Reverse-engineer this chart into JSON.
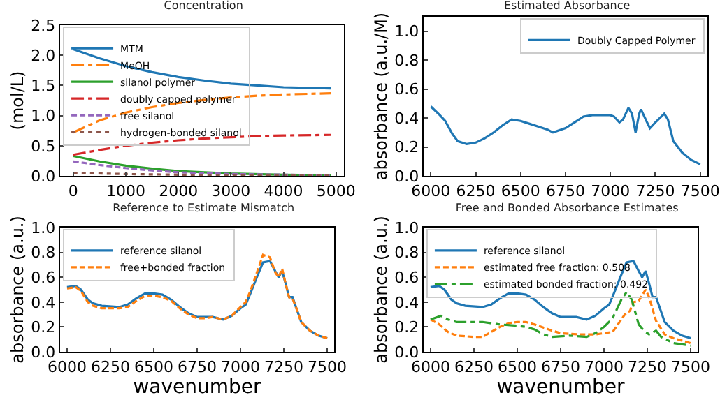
{
  "chart_data": [
    {
      "type": "line",
      "title": "Concentration",
      "ylabel": "(mol/L)",
      "xlim": [
        -250,
        5150
      ],
      "xticks": [
        0,
        1000,
        2000,
        3000,
        4000,
        5000
      ],
      "ylim": [
        0,
        2.5
      ],
      "yticks": [
        {
          "value": 0,
          "label": "0.0"
        },
        {
          "value": 0.5,
          "label": "0.5"
        },
        {
          "value": 1,
          "label": "1.0"
        },
        {
          "value": 1.5,
          "label": "1.5"
        },
        {
          "value": 2,
          "label": "2.0"
        },
        {
          "value": 2.5,
          "label": "2.5"
        }
      ],
      "grid": false,
      "legend": "top left",
      "series": [
        {
          "name": "MTM",
          "color": "#1f77b4",
          "line_style": "solid",
          "x": [
            0,
            500,
            1000,
            1500,
            2000,
            2500,
            3000,
            3500,
            4000,
            4900
          ],
          "values": [
            2.1,
            1.95,
            1.82,
            1.72,
            1.64,
            1.58,
            1.53,
            1.5,
            1.47,
            1.45
          ]
        },
        {
          "name": "MeOH",
          "color": "#ff7f0e",
          "line_style": "dashdot",
          "x": [
            0,
            500,
            1000,
            1500,
            2000,
            2500,
            3000,
            3500,
            4000,
            4900
          ],
          "values": [
            0.72,
            0.92,
            1.05,
            1.14,
            1.21,
            1.26,
            1.3,
            1.33,
            1.35,
            1.37
          ]
        },
        {
          "name": "silanol polymer",
          "color": "#2ca02c",
          "line_style": "solid",
          "x": [
            0,
            500,
            1000,
            1500,
            2000,
            3000,
            4000,
            4900
          ],
          "values": [
            0.33,
            0.24,
            0.17,
            0.12,
            0.08,
            0.04,
            0.02,
            0.01
          ]
        },
        {
          "name": "doubly capped polymer",
          "color": "#d62728",
          "line_style": "dashdot",
          "x": [
            0,
            500,
            1000,
            1500,
            2000,
            2500,
            3000,
            3500,
            4000,
            4900
          ],
          "values": [
            0.35,
            0.43,
            0.5,
            0.55,
            0.59,
            0.62,
            0.64,
            0.66,
            0.67,
            0.68
          ]
        },
        {
          "name": "free silanol",
          "color": "#9467bd",
          "line_style": "dashed",
          "x": [
            0,
            500,
            1000,
            1500,
            2000,
            3000,
            4000,
            4900
          ],
          "values": [
            0.24,
            0.18,
            0.13,
            0.09,
            0.06,
            0.03,
            0.02,
            0.01
          ]
        },
        {
          "name": "hydrogen-bonded silanol",
          "color": "#8c564b",
          "line_style": "dotted",
          "x": [
            0,
            1000,
            2000,
            3000,
            4900
          ],
          "values": [
            0.05,
            0.03,
            0.02,
            0.01,
            0.01
          ]
        }
      ]
    },
    {
      "type": "line",
      "title": "Estimated Absorbance",
      "ylabel": "absorbance (a.u./M)",
      "xlim": [
        5960,
        7540
      ],
      "xticks": [
        6000,
        6250,
        6500,
        6750,
        7000,
        7250,
        7500
      ],
      "ylim": [
        0,
        1.1
      ],
      "yticks": [
        {
          "value": 0,
          "label": "0.0"
        },
        0.2,
        0.4,
        0.6,
        0.8,
        {
          "value": 1,
          "label": "1.0"
        }
      ],
      "grid": false,
      "legend": "top right",
      "series": [
        {
          "name": "Doubly Capped Polymer",
          "color": "#1f77b4",
          "line_style": "solid",
          "x": [
            6000,
            6050,
            6080,
            6120,
            6150,
            6200,
            6250,
            6300,
            6350,
            6400,
            6450,
            6500,
            6550,
            6600,
            6650,
            6680,
            6750,
            6800,
            6850,
            6900,
            6950,
            7000,
            7020,
            7050,
            7070,
            7100,
            7120,
            7140,
            7160,
            7170,
            7200,
            7220,
            7250,
            7300,
            7320,
            7350,
            7400,
            7450,
            7500
          ],
          "values": [
            0.48,
            0.42,
            0.38,
            0.29,
            0.24,
            0.22,
            0.23,
            0.26,
            0.3,
            0.35,
            0.39,
            0.38,
            0.36,
            0.34,
            0.32,
            0.3,
            0.33,
            0.37,
            0.41,
            0.42,
            0.42,
            0.42,
            0.41,
            0.37,
            0.39,
            0.47,
            0.43,
            0.3,
            0.43,
            0.46,
            0.38,
            0.33,
            0.37,
            0.43,
            0.39,
            0.24,
            0.16,
            0.11,
            0.08
          ]
        }
      ]
    },
    {
      "type": "line",
      "title": "Reference to Estimate Mismatch",
      "xlabel": "wavenumber",
      "ylabel": "absorbance (a.u.)",
      "xlim": [
        5960,
        7540
      ],
      "xticks": [
        6000,
        6250,
        6500,
        6750,
        7000,
        7250,
        7500
      ],
      "ylim": [
        0,
        1.0
      ],
      "yticks": [
        {
          "value": 0,
          "label": "0.0"
        },
        0.2,
        0.4,
        0.6,
        0.8,
        {
          "value": 1,
          "label": "1.0"
        }
      ],
      "grid": false,
      "legend": "top left",
      "series": [
        {
          "name": "reference silanol",
          "color": "#1f77b4",
          "line_style": "solid",
          "x": [
            6000,
            6050,
            6080,
            6120,
            6150,
            6200,
            6300,
            6350,
            6400,
            6450,
            6500,
            6550,
            6600,
            6650,
            6700,
            6750,
            6800,
            6840,
            6900,
            6950,
            7000,
            7030,
            7060,
            7100,
            7130,
            7170,
            7200,
            7220,
            7240,
            7260,
            7280,
            7300,
            7330,
            7350,
            7400,
            7450,
            7500
          ],
          "values": [
            0.52,
            0.53,
            0.5,
            0.42,
            0.39,
            0.37,
            0.36,
            0.38,
            0.43,
            0.47,
            0.47,
            0.46,
            0.42,
            0.36,
            0.31,
            0.28,
            0.28,
            0.28,
            0.26,
            0.29,
            0.35,
            0.38,
            0.48,
            0.62,
            0.72,
            0.73,
            0.65,
            0.6,
            0.65,
            0.55,
            0.44,
            0.44,
            0.32,
            0.24,
            0.17,
            0.13,
            0.11
          ]
        },
        {
          "name": "free+bonded fraction",
          "color": "#ff7f0e",
          "line_style": "dashed",
          "x": [
            6000,
            6050,
            6080,
            6120,
            6150,
            6200,
            6300,
            6350,
            6400,
            6450,
            6500,
            6550,
            6600,
            6650,
            6700,
            6750,
            6800,
            6840,
            6900,
            6950,
            7000,
            7030,
            7060,
            7100,
            7130,
            7170,
            7200,
            7220,
            7240,
            7260,
            7280,
            7300,
            7330,
            7350,
            7400,
            7450,
            7500
          ],
          "values": [
            0.51,
            0.52,
            0.49,
            0.4,
            0.37,
            0.35,
            0.35,
            0.36,
            0.41,
            0.45,
            0.45,
            0.44,
            0.41,
            0.35,
            0.3,
            0.27,
            0.27,
            0.28,
            0.26,
            0.29,
            0.36,
            0.4,
            0.5,
            0.66,
            0.78,
            0.76,
            0.64,
            0.6,
            0.67,
            0.55,
            0.44,
            0.43,
            0.32,
            0.24,
            0.17,
            0.13,
            0.11
          ]
        }
      ]
    },
    {
      "type": "line",
      "title": "Free and Bonded Absorbance Estimates",
      "xlabel": "wavenumber",
      "ylabel": "absorbance (a.u.)",
      "xlim": [
        5960,
        7540
      ],
      "xticks": [
        6000,
        6250,
        6500,
        6750,
        7000,
        7250,
        7500
      ],
      "ylim": [
        0,
        1.0
      ],
      "yticks": [
        {
          "value": 0,
          "label": "0.0"
        },
        0.2,
        0.4,
        0.6,
        0.8,
        {
          "value": 1,
          "label": "1.0"
        }
      ],
      "grid": false,
      "legend": "top left",
      "series": [
        {
          "name": "reference silanol",
          "color": "#1f77b4",
          "line_style": "solid",
          "x": [
            6000,
            6050,
            6080,
            6120,
            6150,
            6200,
            6300,
            6350,
            6400,
            6450,
            6500,
            6550,
            6600,
            6650,
            6700,
            6750,
            6800,
            6840,
            6900,
            6950,
            7000,
            7030,
            7060,
            7100,
            7130,
            7170,
            7200,
            7220,
            7240,
            7260,
            7280,
            7300,
            7330,
            7350,
            7400,
            7450,
            7500
          ],
          "values": [
            0.52,
            0.53,
            0.5,
            0.42,
            0.39,
            0.37,
            0.36,
            0.38,
            0.43,
            0.47,
            0.47,
            0.46,
            0.42,
            0.36,
            0.31,
            0.28,
            0.28,
            0.28,
            0.26,
            0.29,
            0.35,
            0.38,
            0.48,
            0.62,
            0.72,
            0.73,
            0.65,
            0.6,
            0.65,
            0.55,
            0.44,
            0.44,
            0.32,
            0.24,
            0.17,
            0.13,
            0.11
          ]
        },
        {
          "name": "estimated free fraction: 0.508",
          "color": "#ff7f0e",
          "line_style": "dashed",
          "x": [
            6000,
            6050,
            6100,
            6150,
            6250,
            6300,
            6400,
            6450,
            6500,
            6550,
            6600,
            6700,
            6750,
            6850,
            6950,
            7000,
            7050,
            7080,
            7120,
            7150,
            7170,
            7200,
            7240,
            7260,
            7300,
            7350,
            7400,
            7500
          ],
          "values": [
            0.26,
            0.22,
            0.16,
            0.13,
            0.12,
            0.12,
            0.2,
            0.23,
            0.24,
            0.24,
            0.22,
            0.17,
            0.15,
            0.14,
            0.14,
            0.15,
            0.16,
            0.22,
            0.3,
            0.33,
            0.4,
            0.41,
            0.5,
            0.44,
            0.25,
            0.14,
            0.11,
            0.07
          ]
        },
        {
          "name": "estimated bonded fraction: 0.492",
          "color": "#2ca02c",
          "line_style": "dashdot",
          "x": [
            6000,
            6060,
            6100,
            6150,
            6250,
            6300,
            6400,
            6500,
            6550,
            6600,
            6650,
            6700,
            6800,
            6900,
            6950,
            7000,
            7050,
            7100,
            7130,
            7160,
            7200,
            7230,
            7260,
            7300,
            7330,
            7400,
            7500
          ],
          "values": [
            0.26,
            0.29,
            0.26,
            0.24,
            0.24,
            0.24,
            0.22,
            0.21,
            0.2,
            0.18,
            0.14,
            0.12,
            0.13,
            0.12,
            0.15,
            0.2,
            0.27,
            0.42,
            0.48,
            0.42,
            0.22,
            0.17,
            0.14,
            0.17,
            0.12,
            0.07,
            0.05
          ]
        }
      ]
    }
  ]
}
